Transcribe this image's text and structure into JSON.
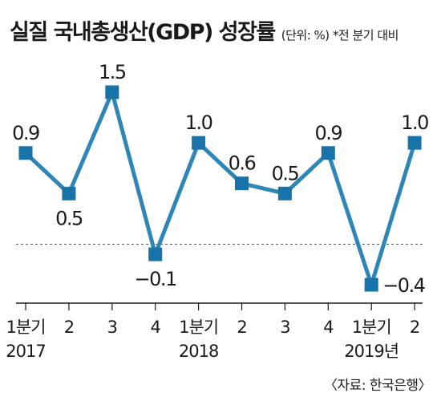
{
  "header": {
    "title": "실질 국내총생산(GDP) 성장률",
    "subtitle": "(단위: %) *전 분기 대비"
  },
  "footer": {
    "source": "〈자료: 한국은행〉"
  },
  "colors": {
    "line": "#2e86b8",
    "marker": "#1773a8",
    "text": "#1a1a1a",
    "baseline": "#555555"
  },
  "chart_data": {
    "type": "line",
    "categories": [
      "1분기",
      "2",
      "3",
      "4",
      "1분기",
      "2",
      "3",
      "4",
      "1분기",
      "2"
    ],
    "x_year_labels": [
      "2017",
      "",
      "",
      "",
      "2018",
      "",
      "",
      "",
      "2019년",
      ""
    ],
    "values": [
      0.9,
      0.5,
      1.5,
      -0.1,
      1.0,
      0.6,
      0.5,
      0.9,
      -0.4,
      1.0
    ],
    "data_labels": [
      "0.9",
      "0.5",
      "1.5",
      "−0.1",
      "1.0",
      "0.6",
      "0.5",
      "0.9",
      "−0.4",
      "1.0"
    ],
    "ylim": [
      -0.55,
      1.65
    ],
    "zero_line": true,
    "grid": false,
    "xlabel": "",
    "ylabel": "",
    "title": "실질 국내총생산(GDP) 성장률"
  }
}
